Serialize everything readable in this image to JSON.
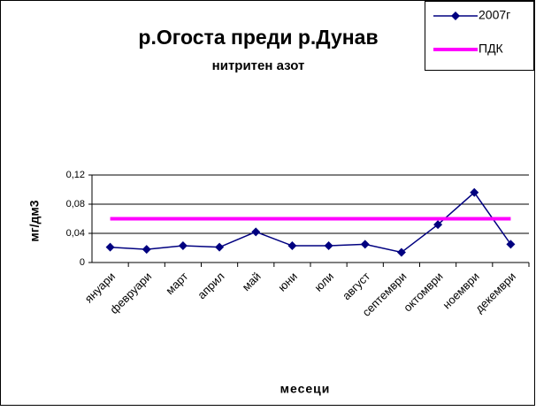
{
  "chart_data": {
    "type": "line",
    "title": "р.Огоста преди р.Дунав",
    "subtitle": "нитритен азот",
    "y_label": "мг/дм3",
    "x_label": "месеци",
    "categories": [
      "януари",
      "февруари",
      "март",
      "април",
      "май",
      "юни",
      "юли",
      "август",
      "септември",
      "октомври",
      "ноември",
      "декември"
    ],
    "series": [
      {
        "name": "2007г",
        "color": "#000080",
        "marker": "diamond",
        "values": [
          0.021,
          0.018,
          0.023,
          0.021,
          0.042,
          0.023,
          0.023,
          0.025,
          0.014,
          0.052,
          0.096,
          0.025
        ]
      },
      {
        "name": "ПДК",
        "color": "#ff00ff",
        "marker": "none",
        "values": [
          0.06,
          0.06,
          0.06,
          0.06,
          0.06,
          0.06,
          0.06,
          0.06,
          0.06,
          0.06,
          0.06,
          0.06
        ]
      }
    ],
    "ylim": [
      0,
      0.12
    ],
    "yticks": [
      {
        "value": 0,
        "label": "0"
      },
      {
        "value": 0.04,
        "label": "0,04"
      },
      {
        "value": 0.08,
        "label": "0,08"
      },
      {
        "value": 0.12,
        "label": "0,12"
      }
    ],
    "grid": true,
    "legend": "top-right"
  }
}
